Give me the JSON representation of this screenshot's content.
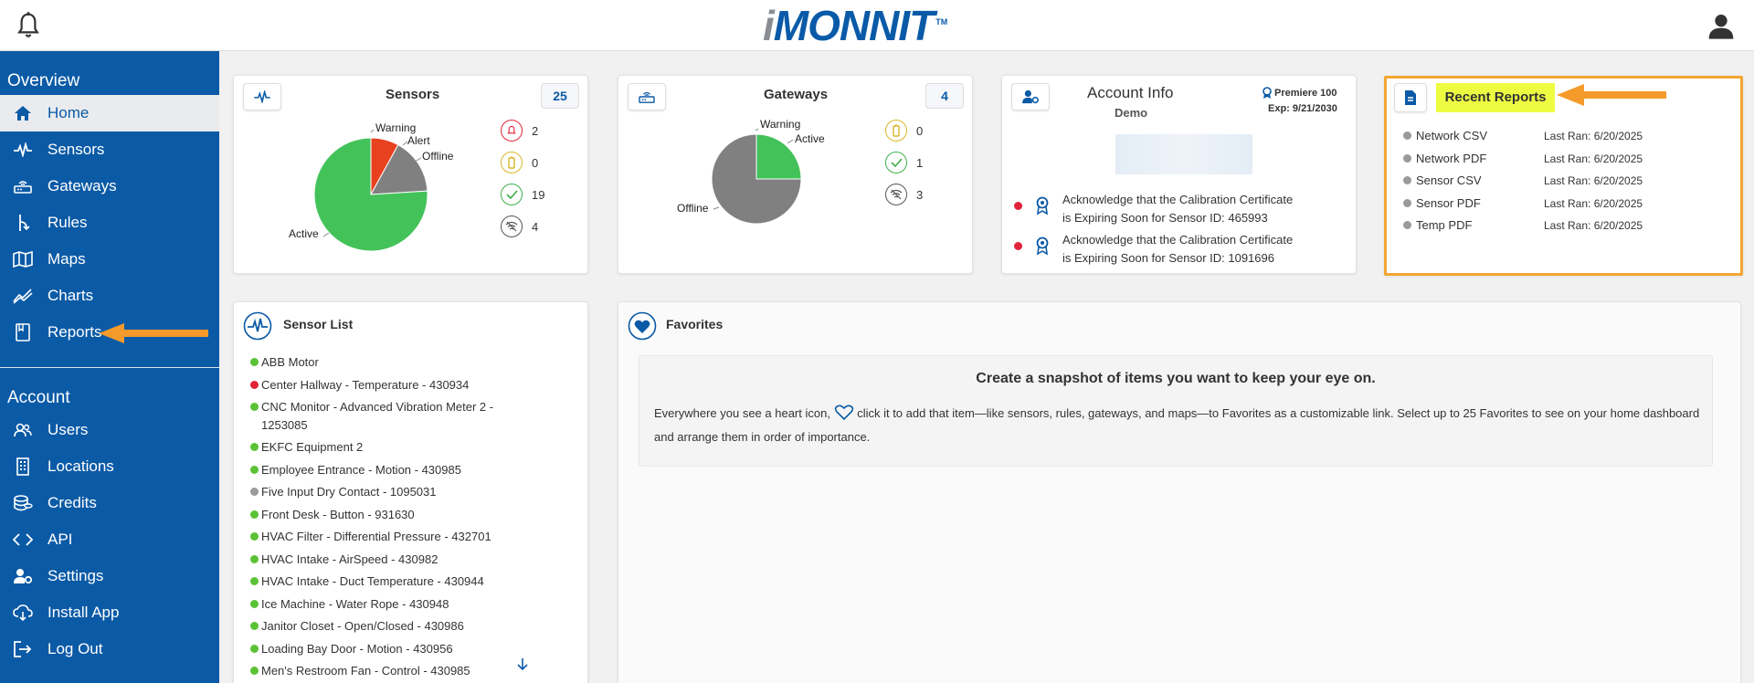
{
  "header": {
    "logo_i": "i",
    "logo_rest": "MONNIT",
    "logo_tm": "TM",
    "icons": [
      "bell-icon",
      "user-icon"
    ]
  },
  "sidebar": {
    "overview_heading": "Overview",
    "overview_items": [
      {
        "label": "Home",
        "icon": "home-icon",
        "active": true
      },
      {
        "label": "Sensors",
        "icon": "pulse-icon"
      },
      {
        "label": "Gateways",
        "icon": "router-icon"
      },
      {
        "label": "Rules",
        "icon": "rules-icon"
      },
      {
        "label": "Maps",
        "icon": "map-icon"
      },
      {
        "label": "Charts",
        "icon": "chart-icon"
      },
      {
        "label": "Reports",
        "icon": "book-icon"
      }
    ],
    "account_heading": "Account",
    "account_items": [
      {
        "label": "Users",
        "icon": "users-icon"
      },
      {
        "label": "Locations",
        "icon": "building-icon"
      },
      {
        "label": "Credits",
        "icon": "coins-icon"
      },
      {
        "label": "API",
        "icon": "code-icon"
      },
      {
        "label": "Settings",
        "icon": "user-gear-icon"
      },
      {
        "label": "Install App",
        "icon": "cloud-download-icon"
      },
      {
        "label": "Log Out",
        "icon": "logout-icon"
      }
    ]
  },
  "sensors_card": {
    "title": "Sensors",
    "count": "25",
    "pie": {
      "labels": {
        "warning": "Warning",
        "alert": "Alert",
        "offline": "Offline",
        "active": "Active"
      },
      "values": {
        "warning": 2,
        "alert": 0,
        "offline": 4,
        "active": 19
      }
    },
    "statuses": [
      {
        "icon": "alarm-bell-icon",
        "value": "2",
        "color": "#e2243a"
      },
      {
        "icon": "battery-icon",
        "value": "0",
        "color": "#d8b52a"
      },
      {
        "icon": "check-icon",
        "value": "19",
        "color": "#3fae49"
      },
      {
        "icon": "no-signal-icon",
        "value": "4",
        "color": "#555555"
      }
    ]
  },
  "gateways_card": {
    "title": "Gateways",
    "count": "4",
    "pie": {
      "labels": {
        "warning": "Warning",
        "active": "Active",
        "offline": "Offline"
      },
      "values": {
        "warning": 0,
        "active": 1,
        "offline": 3
      }
    },
    "statuses": [
      {
        "icon": "battery-icon",
        "value": "0",
        "color": "#d8b52a"
      },
      {
        "icon": "check-icon",
        "value": "1",
        "color": "#3fae49"
      },
      {
        "icon": "no-signal-icon",
        "value": "3",
        "color": "#555555"
      }
    ]
  },
  "account_card": {
    "title": "Account Info",
    "subtitle": "Demo",
    "plan": "Premiere 100",
    "exp": "Exp: 9/21/2030",
    "notices": [
      {
        "line1": "Acknowledge that the Calibration Certificate",
        "line2": "is Expiring Soon for Sensor ID: 465993"
      },
      {
        "line1": "Acknowledge that the Calibration Certificate",
        "line2": "is Expiring Soon for Sensor ID: 1091696"
      }
    ]
  },
  "reports_card": {
    "title": "Recent Reports",
    "items": [
      {
        "name": "Network CSV",
        "last": "Last Ran: 6/20/2025"
      },
      {
        "name": "Network PDF",
        "last": "Last Ran: 6/20/2025"
      },
      {
        "name": "Sensor CSV",
        "last": "Last Ran: 6/20/2025"
      },
      {
        "name": "Sensor PDF",
        "last": "Last Ran: 6/20/2025"
      },
      {
        "name": "Temp PDF",
        "last": "Last Ran: 6/20/2025"
      }
    ]
  },
  "sensor_list": {
    "title": "Sensor List",
    "items": [
      {
        "name": "ABB Motor",
        "color": "#5bc236"
      },
      {
        "name": "Center Hallway - Temperature - 430934",
        "color": "#e2243a"
      },
      {
        "name": "CNC Monitor - Advanced Vibration Meter 2 - 1253085",
        "color": "#5bc236"
      },
      {
        "name": "EKFC Equipment 2",
        "color": "#5bc236"
      },
      {
        "name": "Employee Entrance - Motion - 430985",
        "color": "#5bc236"
      },
      {
        "name": "Five Input Dry Contact - 1095031",
        "color": "#9a9a9a"
      },
      {
        "name": "Front Desk - Button - 931630",
        "color": "#5bc236"
      },
      {
        "name": "HVAC Filter - Differential Pressure - 432701",
        "color": "#5bc236"
      },
      {
        "name": "HVAC Intake - AirSpeed - 430982",
        "color": "#5bc236"
      },
      {
        "name": "HVAC Intake - Duct Temperature - 430944",
        "color": "#5bc236"
      },
      {
        "name": "Ice Machine - Water Rope - 430948",
        "color": "#5bc236"
      },
      {
        "name": "Janitor Closet - Open/Closed - 430986",
        "color": "#5bc236"
      },
      {
        "name": "Loading Bay Door - Motion - 430956",
        "color": "#5bc236"
      },
      {
        "name": "Men's Restroom Fan - Control - 430985",
        "color": "#5bc236"
      }
    ]
  },
  "favorites": {
    "title": "Favorites",
    "heading": "Create a snapshot of items you want to keep your eye on.",
    "text_before": "Everywhere you see a heart icon,",
    "text_after": "click it to add that item—like sensors, rules, gateways, and maps—to Favorites as a customizable link. Select up to 25 Favorites to see on your home dashboard and arrange them in order of importance."
  },
  "colors": {
    "brand_blue": "#0b5aa6",
    "active_green": "#44c25a",
    "offline_gray": "#808080",
    "warning_red": "#e8411f",
    "highlight_yellow": "#eefc41",
    "callout_orange": "#f39a2b"
  }
}
